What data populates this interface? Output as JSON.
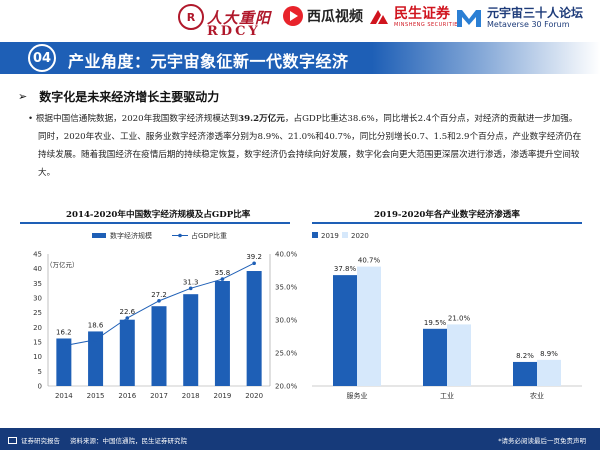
{
  "logos": {
    "rdcy_cn": "人大重阳",
    "rdcy_en": "RDCY",
    "xigua": "西瓜视频",
    "minsheng_cn": "民生证券",
    "minsheng_en": "MINSHENG SECURITIES",
    "forum_cn": "元宇宙三十人论坛",
    "forum_en": "Metaverse 30 Forum"
  },
  "header": {
    "number": "04",
    "title": "产业角度：元宇宙象征新一代数字经济"
  },
  "section": {
    "heading": "数字化是未来经济增长主要驱动力"
  },
  "paragraph": {
    "bullet": "•",
    "part1": "根据中国信通院数据，2020年我国数字经济规模达到",
    "bold": "39.2万亿元",
    "part2": "，占GDP比重达38.6%，同比增长2.4个百分点，对经济的贡献进一步加强。同时，2020年农业、工业、服务业数字经济渗透率分别为8.9%、21.0%和40.7%，同比分别增长0.7、1.5和2.9个百分点，产业数字经济仍在持续发展。随着我国经济在疫情后期的持续稳定恢复，数字经济仍会持续向好发展，数字化会向更大范围更深层次进行渗透，渗透率提升空间较大。"
  },
  "chart_data": [
    {
      "type": "bar",
      "title": "2014-2020年中国数字经济规模及占GDP比率",
      "unit_label": "（万亿元）",
      "categories": [
        "2014",
        "2015",
        "2016",
        "2017",
        "2018",
        "2019",
        "2020"
      ],
      "series": [
        {
          "name": "数字经济规模",
          "type": "bar",
          "values": [
            16.2,
            18.6,
            22.6,
            27.2,
            31.3,
            35.8,
            39.2
          ],
          "color": "#1e5fb6"
        },
        {
          "name": "占GDP比重",
          "type": "line",
          "axis": "right",
          "values": [
            26.1,
            27.0,
            30.3,
            32.9,
            34.8,
            36.2,
            38.6
          ],
          "color": "#1e5fb6"
        }
      ],
      "ylim": [
        0,
        45
      ],
      "yticks": [
        0,
        5,
        10,
        15,
        20,
        25,
        30,
        35,
        40,
        45
      ],
      "y2lim": [
        20.0,
        40.0
      ],
      "y2ticks": [
        "20.0%",
        "25.0%",
        "30.0%",
        "35.0%",
        "40.0%"
      ],
      "legend": "top"
    },
    {
      "type": "bar",
      "title": "2019-2020年各产业数字经济渗透率",
      "categories": [
        "服务业",
        "工业",
        "农业"
      ],
      "series": [
        {
          "name": "2019",
          "values": [
            37.8,
            19.5,
            8.2
          ],
          "labels": [
            "37.8%",
            "19.5%",
            "8.2%"
          ],
          "color": "#1e5fb6"
        },
        {
          "name": "2020",
          "values": [
            40.7,
            21.0,
            8.9
          ],
          "labels": [
            "40.7%",
            "21.0%",
            "8.9%"
          ],
          "color": "#d6e8fb"
        }
      ],
      "ylim": [
        0,
        45
      ],
      "legend": "top-left"
    }
  ],
  "footer": {
    "report": "证券研究报告",
    "source": "资料来源：中国信通院，民生证券研究院",
    "disclaimer": "*请务必阅读最后一页免责声明"
  }
}
